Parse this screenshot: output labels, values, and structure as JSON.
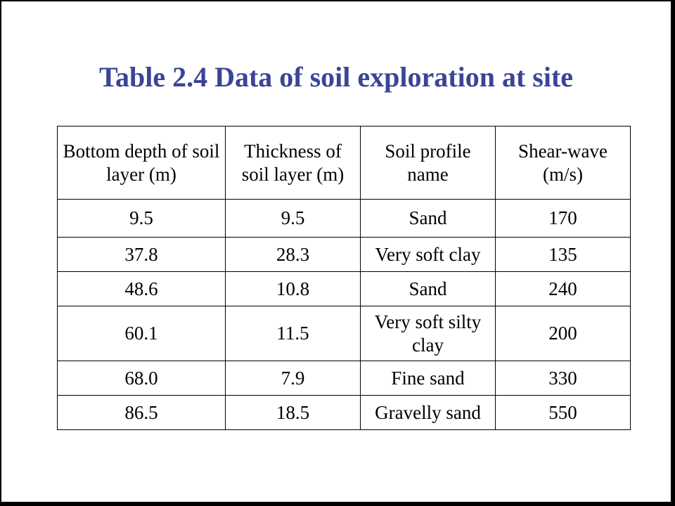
{
  "title": "Table 2.4 Data of soil exploration at site",
  "table": {
    "headers": [
      "Bottom depth of soil layer (m)",
      "Thickness of soil layer (m)",
      "Soil profile name",
      "Shear-wave (m/s)"
    ],
    "rows": [
      [
        "9.5",
        "9.5",
        "Sand",
        "170"
      ],
      [
        "37.8",
        "28.3",
        "Very soft clay",
        "135"
      ],
      [
        "48.6",
        "10.8",
        "Sand",
        "240"
      ],
      [
        "60.1",
        "11.5",
        "Very soft silty clay",
        "200"
      ],
      [
        "68.0",
        "7.9",
        "Fine sand",
        "330"
      ],
      [
        "86.5",
        "18.5",
        "Gravelly sand",
        "550"
      ]
    ]
  },
  "colors": {
    "title": "#3b4596",
    "text": "#000000",
    "border": "#000000",
    "background": "#ffffff"
  }
}
